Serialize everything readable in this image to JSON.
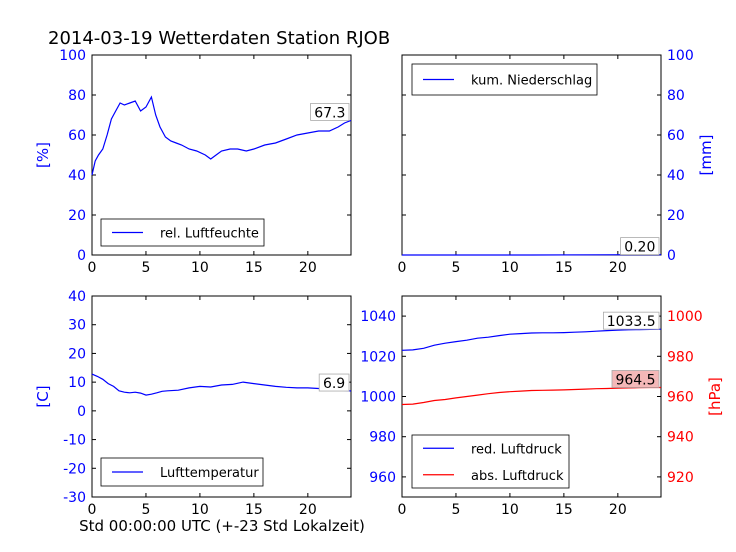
{
  "title": "2014-03-19 Wetterdaten Station RJOB",
  "colors": {
    "blue": "#0000ff",
    "red": "#ff0000",
    "black": "#000000",
    "label_box_red": "#f4b8b8"
  },
  "xlabel": "Std 00:00:00 UTC (+-23 Std Lokalzeit)",
  "chart_data": [
    {
      "type": "line",
      "name": "humidity",
      "xlim": [
        0,
        24
      ],
      "ylim": [
        0,
        100
      ],
      "xticks": [
        0,
        5,
        10,
        15,
        20
      ],
      "yticks": [
        0,
        20,
        40,
        60,
        80,
        100
      ],
      "ylabel": "[%]",
      "ylabel_side": "left",
      "legend_placement": "lower-left",
      "series": [
        {
          "name": "rel. Luftfeuchte",
          "color": "#0000ff",
          "end_label": "67.3",
          "x": [
            0,
            0.3,
            0.6,
            1.0,
            1.4,
            1.8,
            2.2,
            2.6,
            3.0,
            3.5,
            4.0,
            4.5,
            5.0,
            5.5,
            5.9,
            6.3,
            6.8,
            7.3,
            7.8,
            8.3,
            9.0,
            9.7,
            10.5,
            11.0,
            11.5,
            12.0,
            12.8,
            13.5,
            14.3,
            15.0,
            16.0,
            17.0,
            18.0,
            19.0,
            20.0,
            21.0,
            22.0,
            22.8,
            23.4,
            24.0
          ],
          "y": [
            40,
            47,
            50,
            53,
            60,
            68,
            72,
            76,
            75,
            76,
            77,
            72,
            74,
            79,
            70,
            64,
            59,
            57,
            56,
            55,
            53,
            52,
            50,
            48,
            50,
            52,
            53,
            53,
            52,
            53,
            55,
            56,
            58,
            60,
            61,
            62,
            62,
            64,
            66,
            67.3
          ]
        }
      ]
    },
    {
      "type": "line",
      "name": "precipitation",
      "xlim": [
        0,
        24
      ],
      "ylim": [
        0,
        100
      ],
      "xticks": [
        0,
        5,
        10,
        15,
        20
      ],
      "yticks": [
        0,
        20,
        40,
        60,
        80,
        100
      ],
      "ylabel": "[mm]",
      "ylabel_side": "right",
      "legend_placement": "upper-left",
      "series": [
        {
          "name": "kum. Niederschlag",
          "color": "#0000ff",
          "end_label": "0.20",
          "x": [
            0,
            6,
            12,
            18,
            24
          ],
          "y": [
            0,
            0,
            0,
            0.1,
            0.2
          ]
        }
      ]
    },
    {
      "type": "line",
      "name": "temperature",
      "xlim": [
        0,
        24
      ],
      "ylim": [
        -30,
        40
      ],
      "xticks": [
        0,
        5,
        10,
        15,
        20
      ],
      "yticks": [
        -30,
        -20,
        -10,
        0,
        10,
        20,
        30,
        40
      ],
      "ylabel": "[C]",
      "ylabel_side": "left",
      "legend_placement": "lower-left",
      "series": [
        {
          "name": "Lufttemperatur",
          "color": "#0000ff",
          "end_label": "6.9",
          "x": [
            0,
            0.5,
            1.0,
            1.5,
            2.0,
            2.5,
            3.0,
            3.5,
            4.0,
            4.5,
            5.0,
            5.5,
            6.0,
            6.5,
            7.0,
            8.0,
            9.0,
            10.0,
            11.0,
            12.0,
            13.0,
            14.0,
            15.0,
            16.0,
            17.0,
            18.0,
            19.0,
            20.0,
            21.0,
            22.0,
            23.0,
            24.0
          ],
          "y": [
            12.8,
            12.0,
            11.0,
            9.5,
            8.5,
            7.0,
            6.5,
            6.3,
            6.5,
            6.2,
            5.5,
            5.8,
            6.3,
            6.8,
            7.0,
            7.2,
            8.0,
            8.5,
            8.3,
            9.0,
            9.2,
            10.0,
            9.5,
            9.0,
            8.5,
            8.2,
            8.0,
            8.0,
            7.8,
            7.5,
            7.2,
            6.9
          ]
        }
      ]
    },
    {
      "type": "line",
      "name": "pressure",
      "xlim": [
        0,
        24
      ],
      "ylim": [
        950,
        1050
      ],
      "y2lim": [
        910,
        1010
      ],
      "xticks": [
        0,
        5,
        10,
        15,
        20
      ],
      "yticks": [
        960,
        980,
        1000,
        1020,
        1040
      ],
      "y2ticks": [
        920,
        940,
        960,
        980,
        1000
      ],
      "y2label": "[hPa]",
      "legend_placement": "lower-left",
      "series": [
        {
          "name": "red. Luftdruck",
          "color": "#0000ff",
          "axis": "left",
          "end_label": "1033.5",
          "x": [
            0,
            1,
            2,
            3,
            4,
            5,
            6,
            7,
            8,
            9,
            10,
            11,
            12,
            13,
            14,
            15,
            16,
            17,
            18,
            19,
            20,
            21,
            22,
            23,
            24
          ],
          "y": [
            1023,
            1023.2,
            1024,
            1025.5,
            1026.5,
            1027.3,
            1028,
            1029,
            1029.5,
            1030.3,
            1031,
            1031.3,
            1031.6,
            1031.7,
            1031.7,
            1031.8,
            1032,
            1032.2,
            1032.5,
            1032.8,
            1033,
            1033.2,
            1033.3,
            1033.4,
            1033.5
          ]
        },
        {
          "name": "abs. Luftdruck",
          "color": "#ff0000",
          "axis": "right",
          "end_label": "964.5",
          "x": [
            0,
            1,
            2,
            3,
            4,
            5,
            6,
            7,
            8,
            9,
            10,
            11,
            12,
            13,
            14,
            15,
            16,
            17,
            18,
            19,
            20,
            21,
            22,
            23,
            24
          ],
          "y": [
            956,
            956.2,
            957,
            958,
            958.5,
            959.3,
            960,
            960.7,
            961.4,
            962,
            962.4,
            962.7,
            963,
            963.1,
            963.2,
            963.3,
            963.5,
            963.7,
            963.9,
            964,
            964.2,
            964.3,
            964.4,
            964.5,
            964.5
          ]
        }
      ]
    }
  ]
}
